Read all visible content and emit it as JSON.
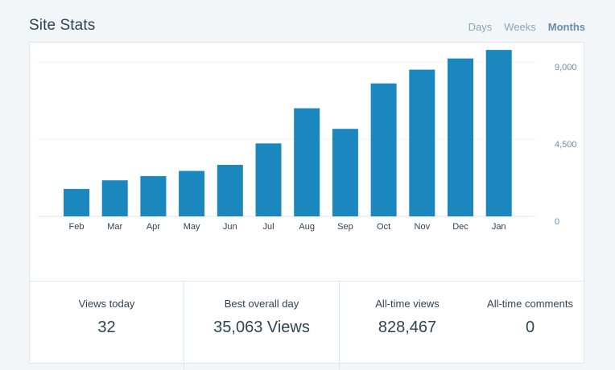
{
  "header": {
    "title": "Site Stats",
    "tabs": [
      {
        "label": "Days",
        "active": false
      },
      {
        "label": "Weeks",
        "active": false
      },
      {
        "label": "Months",
        "active": true
      }
    ]
  },
  "chart_data": {
    "type": "bar",
    "categories": [
      "Feb",
      "Mar",
      "Apr",
      "May",
      "Jun",
      "Jul",
      "Aug",
      "Sep",
      "Oct",
      "Nov",
      "Dec",
      "Jan"
    ],
    "values": [
      1600,
      2100,
      2350,
      2650,
      3000,
      4250,
      6300,
      5100,
      7750,
      8550,
      9200,
      9700
    ],
    "y_ticks": [
      "9,000",
      "4,500",
      "0"
    ],
    "y_tick_values": [
      9000,
      4500,
      0
    ],
    "ylim": [
      0,
      9900
    ],
    "bar_color": "#1a87bf",
    "grid": true,
    "y_axis_position": "right"
  },
  "stats": [
    {
      "label": "Views today",
      "value": "32"
    },
    {
      "label": "Best overall day",
      "value": "35,063 Views"
    },
    {
      "label": "All-time views",
      "value": "828,467"
    },
    {
      "label": "All-time comments",
      "value": "0"
    }
  ]
}
